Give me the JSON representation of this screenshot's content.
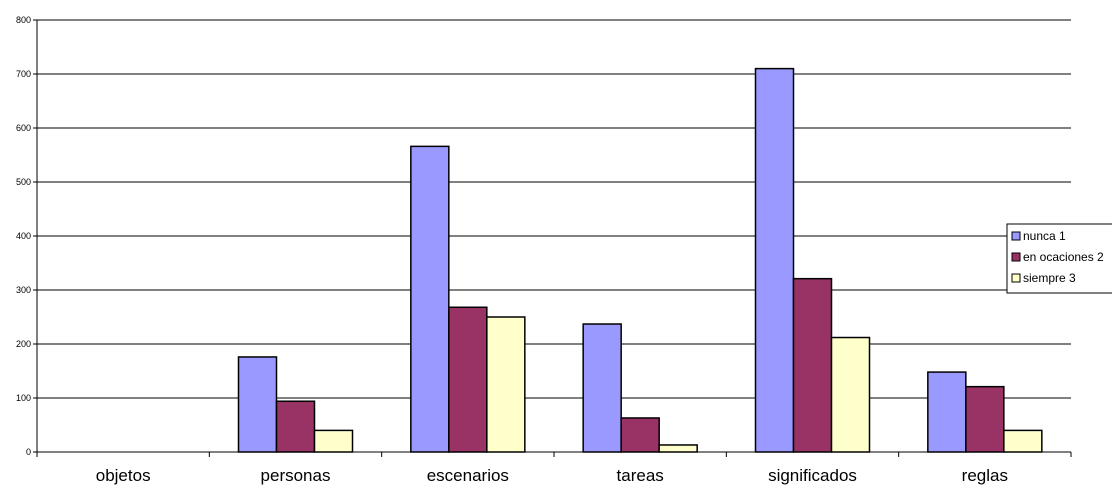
{
  "chart_data": {
    "type": "bar",
    "title": "",
    "xlabel": "",
    "ylabel": "",
    "categories": [
      "objetos",
      "personas",
      "escenarios",
      "tareas",
      "significados",
      "reglas"
    ],
    "series": [
      {
        "name": "nunca 1",
        "color": "#9999ff",
        "values": [
          0,
          176,
          566,
          237,
          710,
          148
        ]
      },
      {
        "name": "en ocaciones 2",
        "color": "#993366",
        "values": [
          0,
          94,
          268,
          63,
          321,
          121
        ]
      },
      {
        "name": "siempre 3",
        "color": "#ffffcc",
        "values": [
          0,
          40,
          250,
          13,
          212,
          40
        ]
      }
    ],
    "ylim": [
      0,
      800
    ],
    "yticks": [
      0,
      100,
      200,
      300,
      400,
      500,
      600,
      700,
      800
    ],
    "grid": true,
    "legend_position": "right"
  }
}
